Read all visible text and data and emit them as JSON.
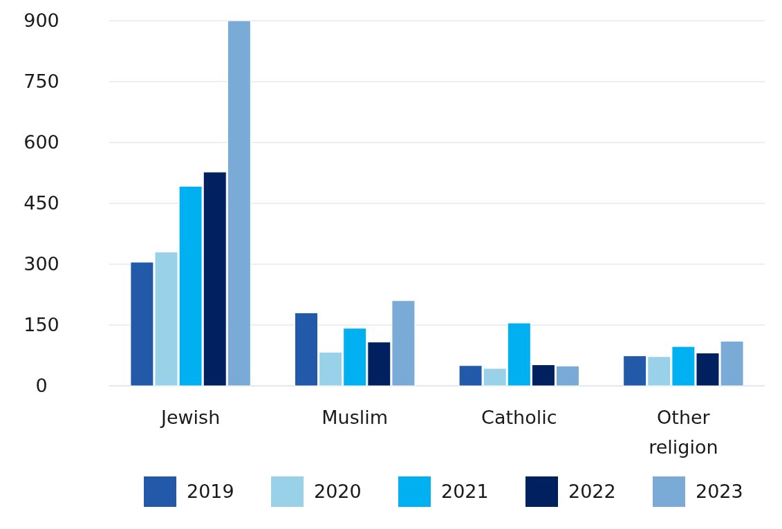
{
  "chart_data": {
    "type": "bar",
    "categories": [
      "Jewish",
      "Muslim",
      "Catholic",
      "Other religion"
    ],
    "series": [
      {
        "name": "2019",
        "color": "#2259a8",
        "values": [
          305,
          180,
          50,
          74
        ]
      },
      {
        "name": "2020",
        "color": "#99d2e8",
        "values": [
          330,
          83,
          43,
          72
        ]
      },
      {
        "name": "2021",
        "color": "#00b0f0",
        "values": [
          492,
          142,
          155,
          97
        ]
      },
      {
        "name": "2022",
        "color": "#002060",
        "values": [
          527,
          108,
          52,
          81
        ]
      },
      {
        "name": "2023",
        "color": "#7aaad6",
        "values": [
          900,
          210,
          49,
          110
        ]
      }
    ],
    "ylim": [
      0,
      900
    ],
    "yticks": [
      0,
      150,
      300,
      450,
      600,
      750,
      900
    ],
    "grid": "y",
    "legend": "bottom"
  }
}
